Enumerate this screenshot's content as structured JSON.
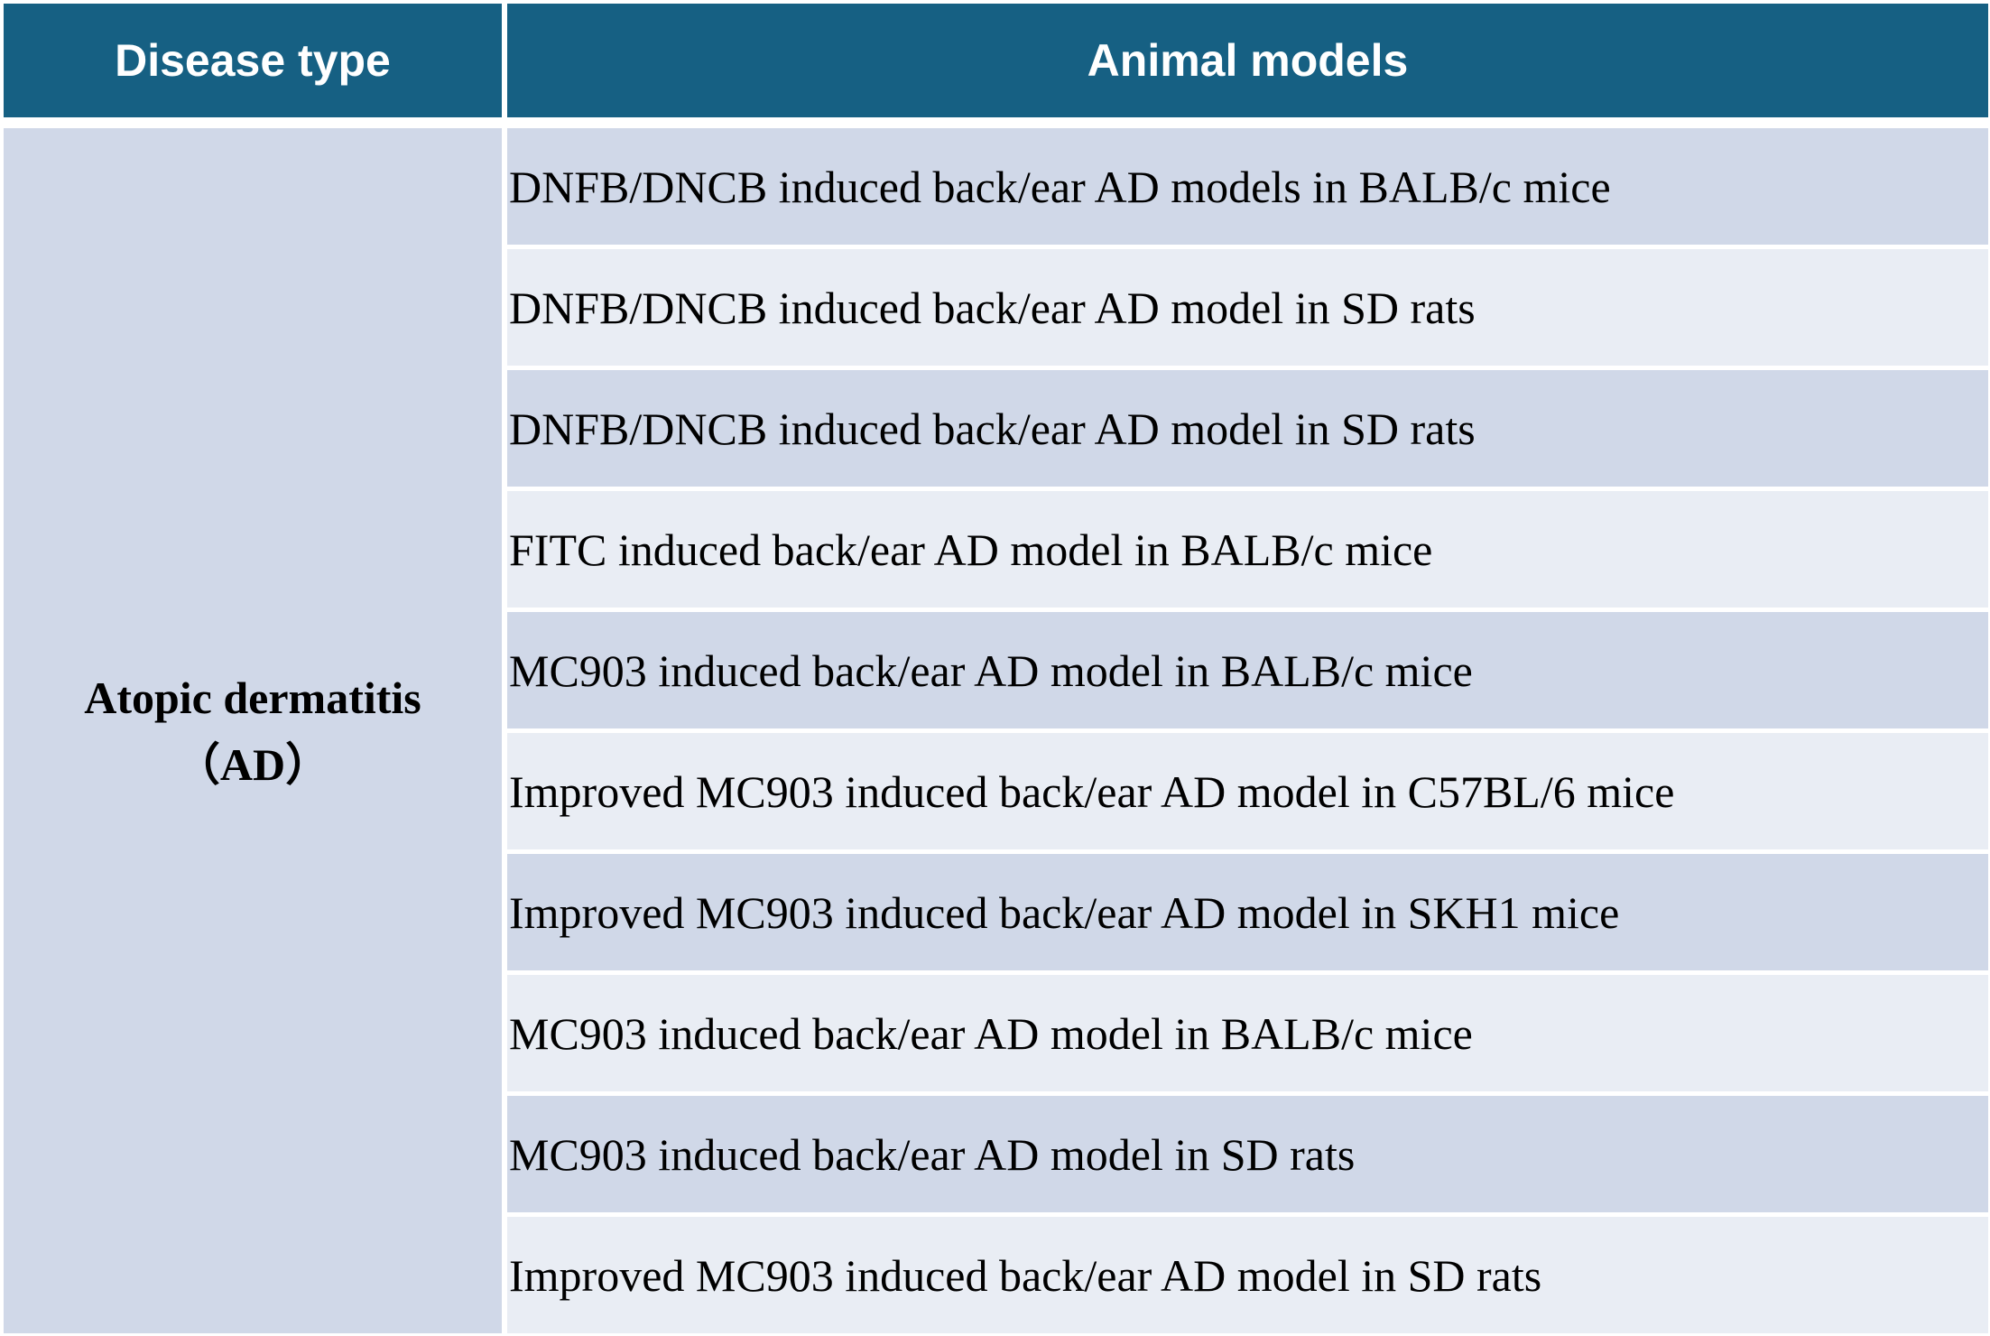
{
  "table": {
    "headers": [
      "Disease type",
      "Animal models"
    ],
    "disease": {
      "line1": "Atopic dermatitis",
      "line2": "（AD）"
    },
    "models": [
      "DNFB/DNCB induced back/ear AD models in BALB/c mice",
      "DNFB/DNCB induced back/ear AD model in SD rats",
      "DNFB/DNCB induced back/ear AD model in SD rats",
      "FITC induced back/ear AD model in BALB/c mice",
      "MC903 induced back/ear AD model in BALB/c mice",
      "Improved MC903 induced back/ear AD model in C57BL/6 mice",
      "Improved MC903 induced back/ear AD model in SKH1 mice",
      "MC903 induced back/ear AD model in BALB/c mice",
      "MC903 induced back/ear AD model in SD rats",
      "Improved MC903 induced back/ear AD model in SD rats"
    ]
  },
  "colors": {
    "header_bg": "#166083",
    "header_text": "#ffffff",
    "row_dark": "#d0d8e8",
    "row_light": "#e9edf4"
  }
}
